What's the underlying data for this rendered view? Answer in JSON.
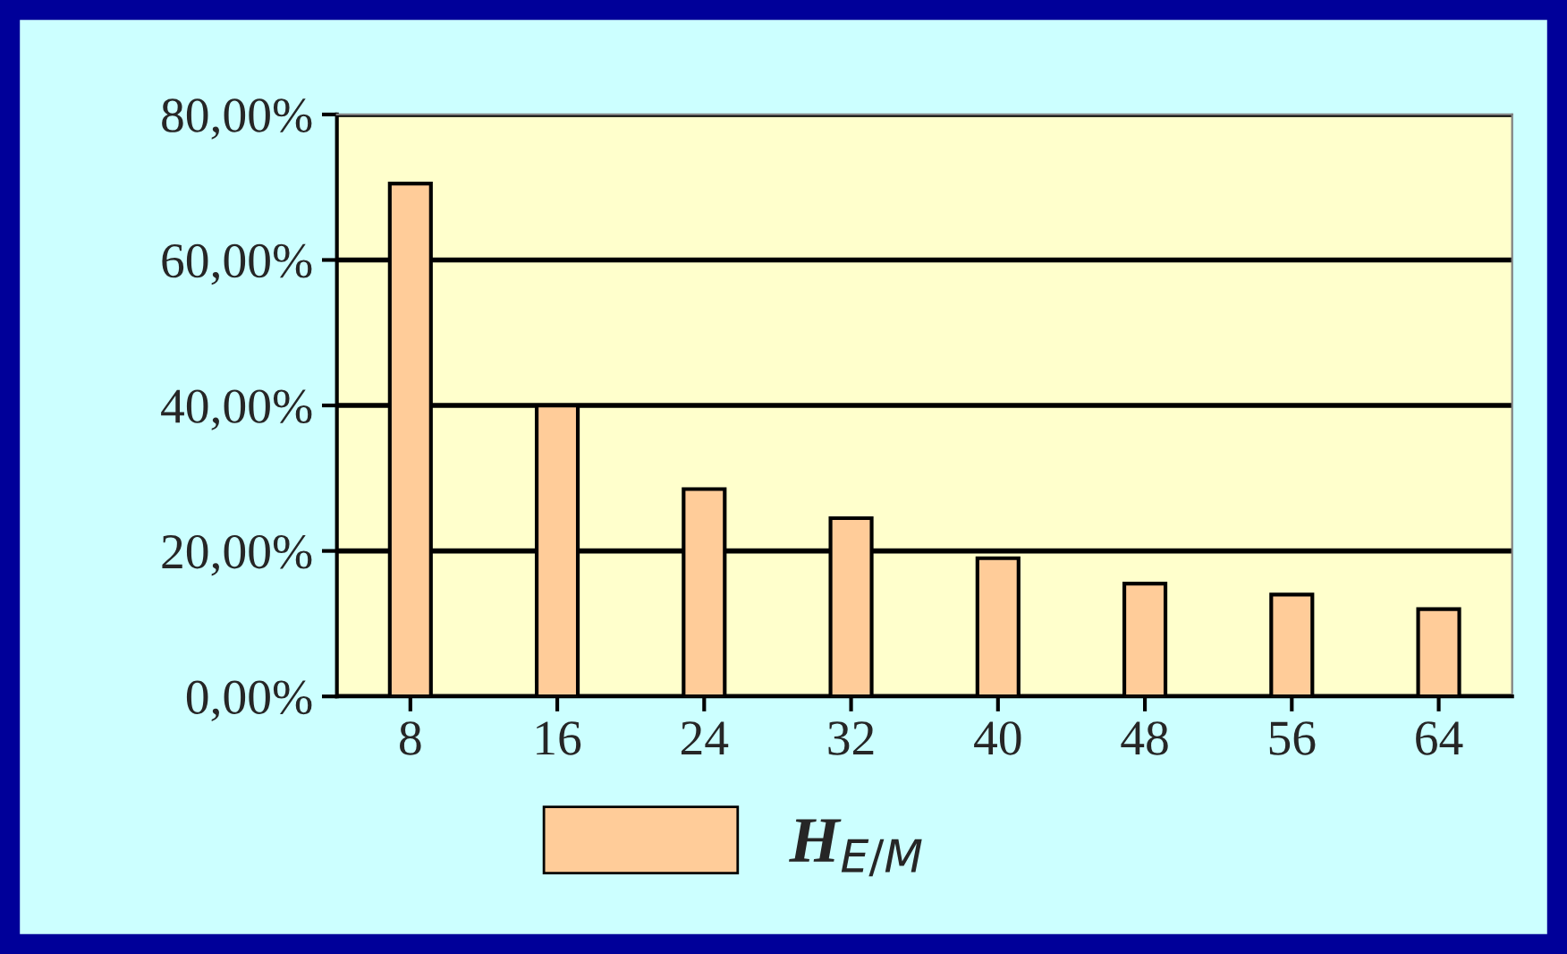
{
  "chart_data": {
    "type": "bar",
    "categories": [
      "8",
      "16",
      "24",
      "32",
      "40",
      "48",
      "56",
      "64"
    ],
    "series": [
      {
        "name": "H$_{E/M}$",
        "color": "#ffcc99",
        "values": [
          70.5,
          40,
          28.5,
          24.5,
          19,
          15.5,
          14,
          12
        ]
      }
    ],
    "ylim": [
      0,
      80
    ],
    "yticks": [
      {
        "value": 0,
        "label": "0,00%"
      },
      {
        "value": 20,
        "label": "20,00%"
      },
      {
        "value": 40,
        "label": "40,00%"
      },
      {
        "value": 60,
        "label": "60,00%"
      },
      {
        "value": 80,
        "label": "80,00%"
      }
    ],
    "grid": "y",
    "legend": "bottom"
  }
}
